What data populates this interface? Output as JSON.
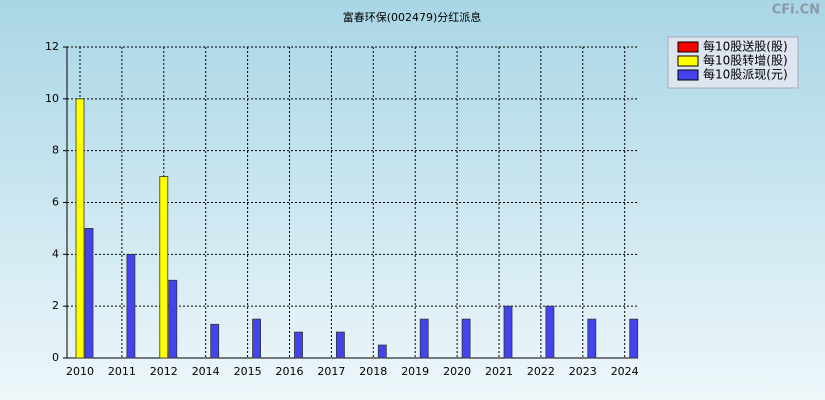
{
  "chart_data": {
    "type": "bar",
    "title": "富春环保(002479)分红派息",
    "watermark": "CFi.CN",
    "categories": [
      "2010",
      "2011",
      "2012",
      "2014",
      "2015",
      "2016",
      "2017",
      "2018",
      "2019",
      "2020",
      "2021",
      "2022",
      "2023",
      "2024"
    ],
    "series": [
      {
        "name": "每10股送股(股)",
        "color": "#ff0000",
        "values": [
          null,
          null,
          null,
          null,
          null,
          null,
          null,
          null,
          null,
          null,
          null,
          null,
          null,
          null
        ]
      },
      {
        "name": "每10股转增(股)",
        "color": "#ffff00",
        "values": [
          10,
          null,
          7,
          null,
          null,
          null,
          null,
          null,
          null,
          null,
          null,
          null,
          null,
          null
        ]
      },
      {
        "name": "每10股派现(元)",
        "color": "#4444ee",
        "values": [
          5,
          4,
          3,
          1.3,
          1.5,
          1,
          1,
          0.5,
          1.5,
          1.5,
          2,
          2,
          1.5,
          1.5
        ]
      }
    ],
    "ylim": [
      0,
      12
    ],
    "yticks": [
      0,
      2,
      4,
      6,
      8,
      10,
      12
    ],
    "grid": true,
    "legend": "top-right"
  }
}
